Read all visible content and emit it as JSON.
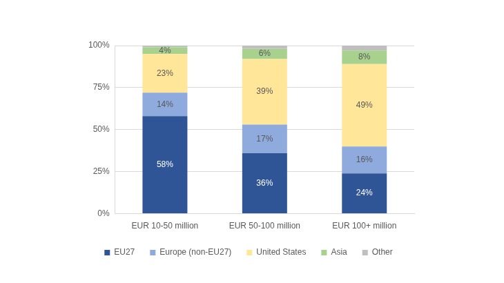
{
  "chart_data": {
    "type": "bar",
    "stacked": true,
    "categories": [
      "EUR 10-50 million",
      "EUR 50-100 million",
      "EUR 100+ million"
    ],
    "series": [
      {
        "name": "EU27",
        "color": "#2F5597",
        "values": [
          58,
          36,
          24
        ],
        "value_labels": [
          "58%",
          "36%",
          "24%"
        ]
      },
      {
        "name": "Europe (non-EU27)",
        "color": "#8FAADC",
        "values": [
          14,
          17,
          16
        ],
        "value_labels": [
          "14%",
          "17%",
          "16%"
        ]
      },
      {
        "name": "United States",
        "color": "#FFE699",
        "values": [
          23,
          39,
          49
        ],
        "value_labels": [
          "23%",
          "39%",
          "49%"
        ]
      },
      {
        "name": "Asia",
        "color": "#A9D18E",
        "values": [
          4,
          6,
          8
        ],
        "value_labels": [
          "4%",
          "6%",
          "8%"
        ]
      },
      {
        "name": "Other",
        "color": "#BFBFBF",
        "values": [
          1,
          2,
          3
        ],
        "data_labels": false
      }
    ],
    "ylim": [
      0,
      100
    ],
    "yticks": [
      {
        "value": 0,
        "label": "0%"
      },
      {
        "value": 25,
        "label": "25%"
      },
      {
        "value": 50,
        "label": "50%"
      },
      {
        "value": 75,
        "label": "75%"
      },
      {
        "value": 100,
        "label": "100%"
      }
    ],
    "grid": true,
    "legend": "bottom",
    "data_labels": true
  }
}
